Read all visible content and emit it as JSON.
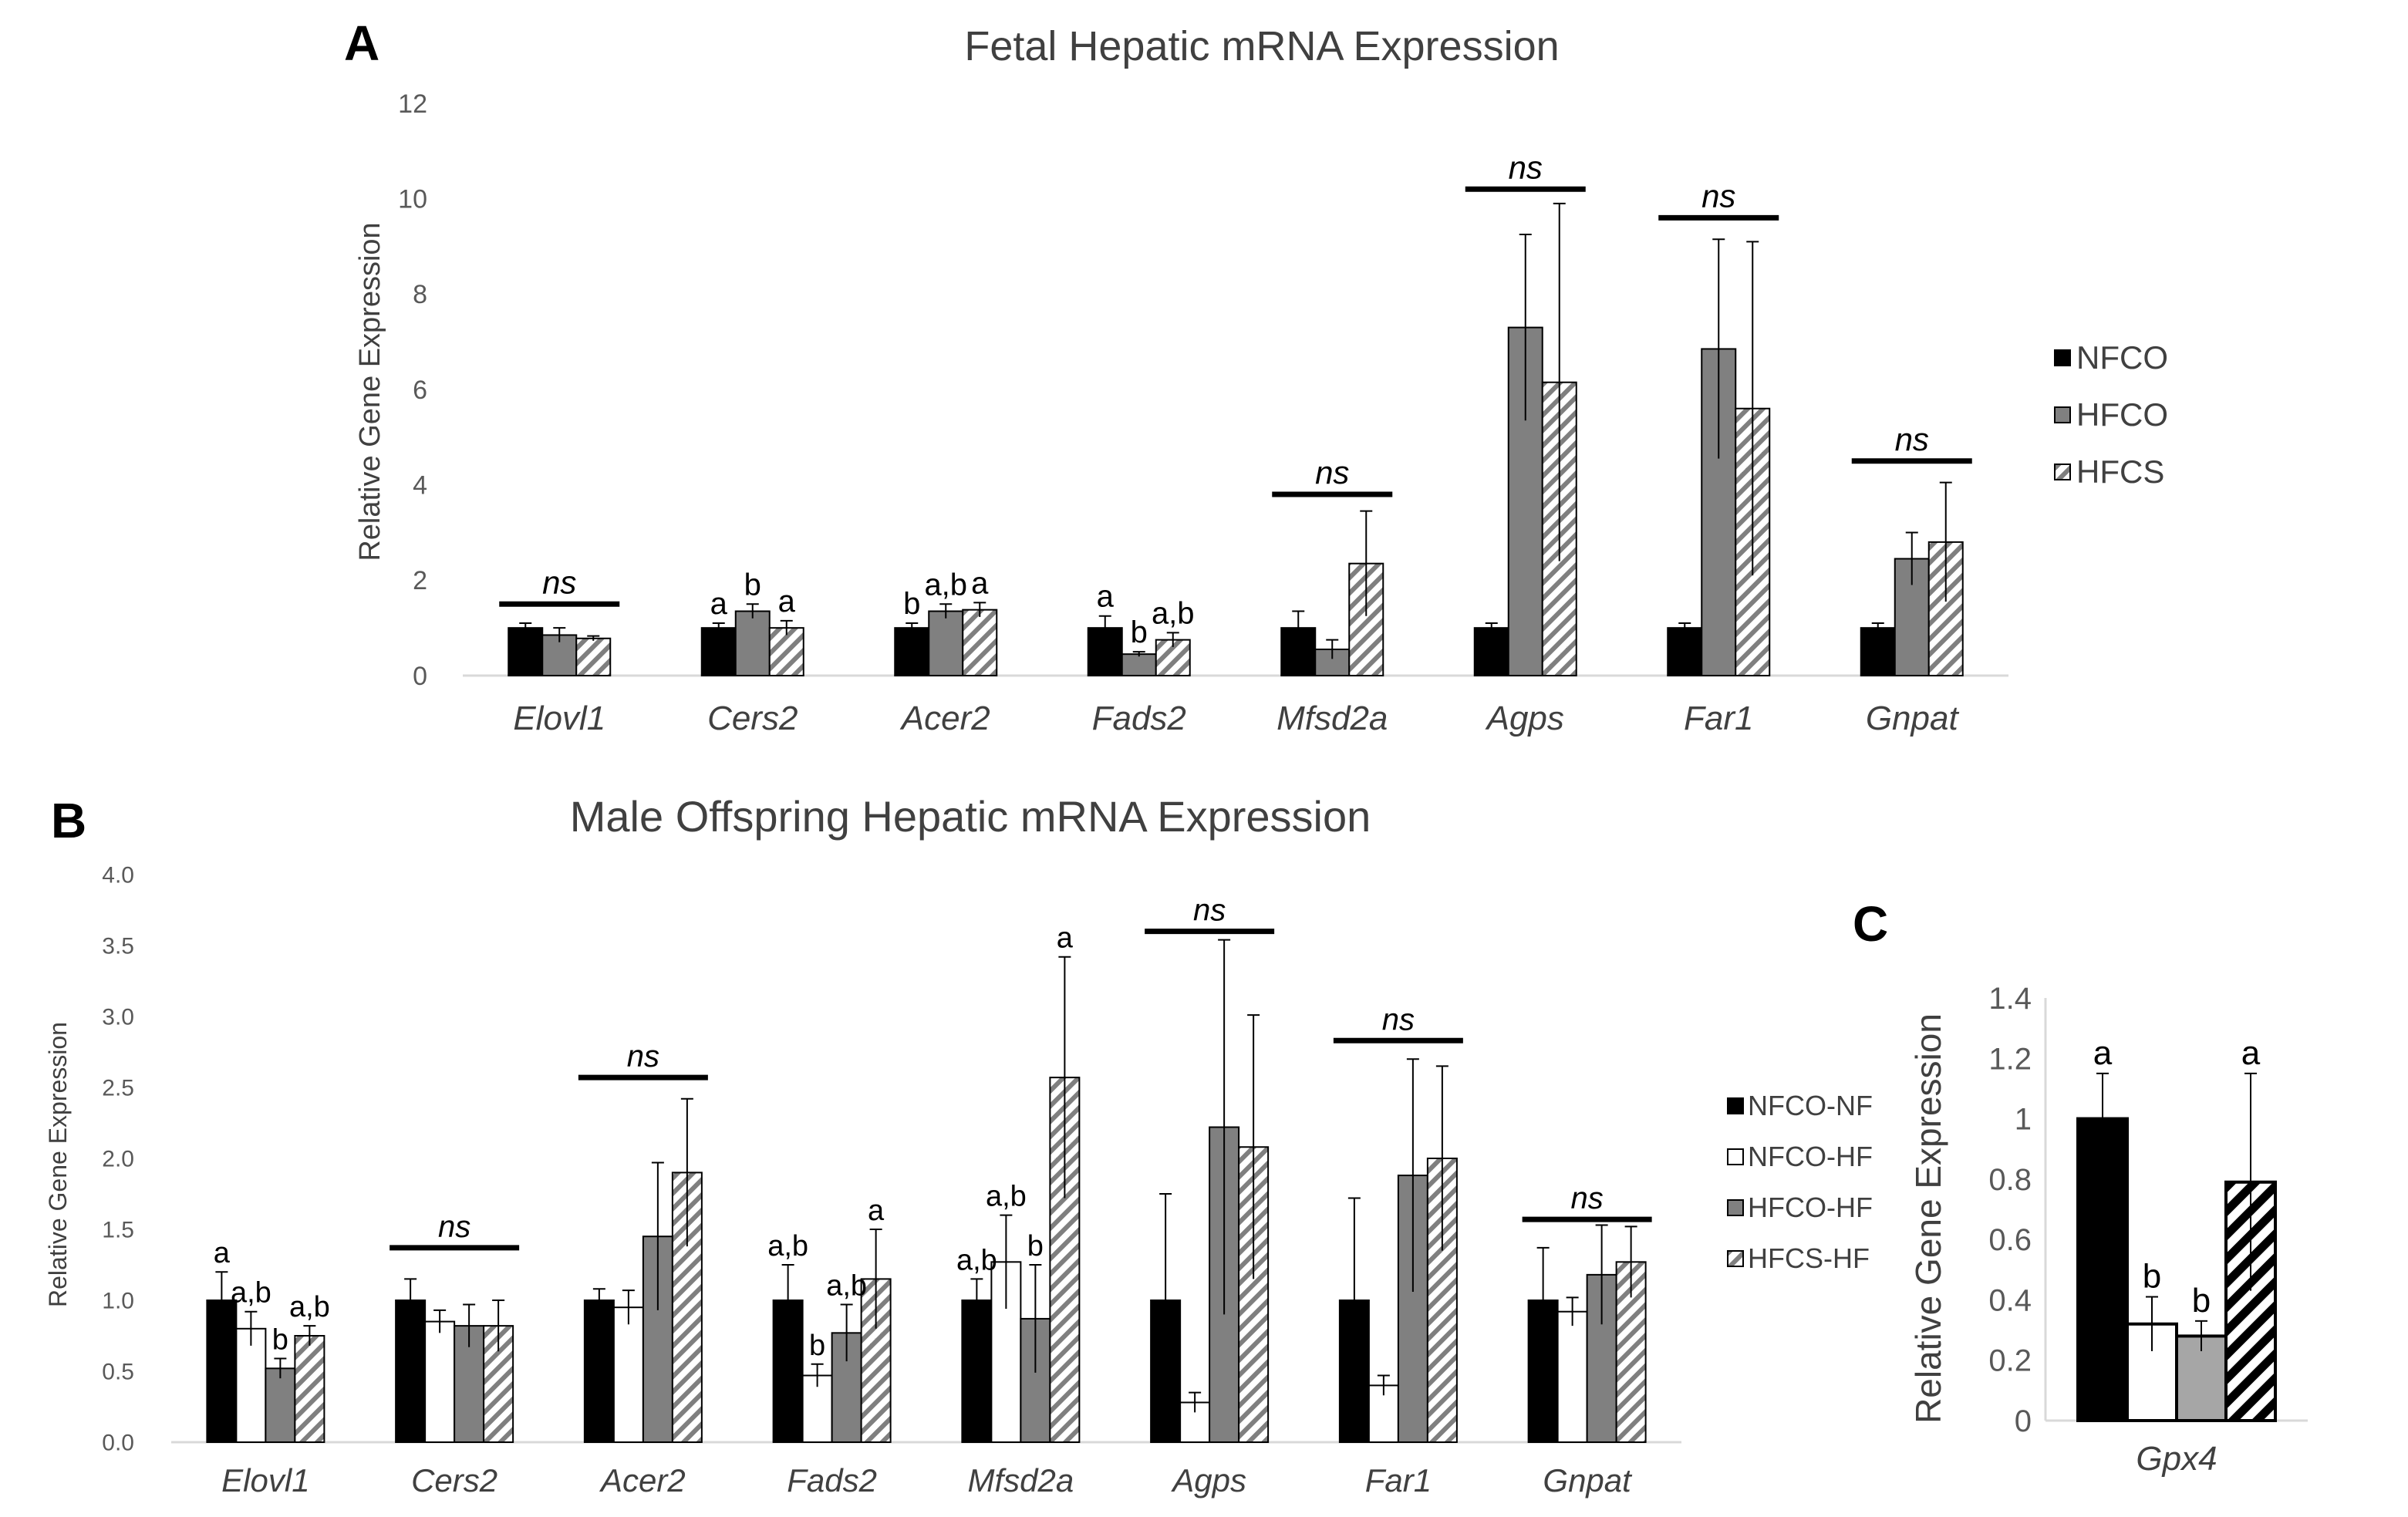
{
  "colors": {
    "black": "#000000",
    "gray": "#808080",
    "lightgray": "#a6a6a6",
    "white": "#ffffff",
    "axis": "#d9d9d9"
  },
  "chart_data": [
    {
      "panel": "A",
      "type": "bar",
      "title": "Fetal Hepatic mRNA Expression",
      "ylabel": "Relative Gene Expression",
      "ylim": [
        0,
        12
      ],
      "yticks": [
        "0",
        "2",
        "4",
        "6",
        "8",
        "10",
        "12"
      ],
      "categories": [
        "Elovl1",
        "Cers2",
        "Acer2",
        "Fads2",
        "Mfsd2a",
        "Agps",
        "Far1",
        "Gnpat"
      ],
      "legend_position": "right",
      "series": [
        {
          "name": "NFCO",
          "fill": "black",
          "values": [
            1.0,
            1.0,
            1.0,
            1.0,
            1.0,
            1.0,
            1.0,
            1.0
          ],
          "errors": [
            0.1,
            0.1,
            0.1,
            0.25,
            0.35,
            0.1,
            0.1,
            0.1
          ]
        },
        {
          "name": "HFCO",
          "fill": "gray",
          "values": [
            0.85,
            1.35,
            1.35,
            0.45,
            0.55,
            7.3,
            6.85,
            2.45
          ],
          "errors": [
            0.15,
            0.15,
            0.15,
            0.05,
            0.2,
            1.95,
            2.3,
            0.55
          ]
        },
        {
          "name": "HFCS",
          "fill": "hatch",
          "values": [
            0.78,
            1.0,
            1.38,
            0.75,
            2.35,
            6.15,
            5.6,
            2.8
          ],
          "errors": [
            0.05,
            0.15,
            0.15,
            0.15,
            1.1,
            3.75,
            3.5,
            1.25
          ]
        }
      ],
      "annotations": [
        {
          "cat": 0,
          "type": "ns",
          "text": "ns",
          "y": 1.5
        },
        {
          "cat": 1,
          "series": 0,
          "text": "a"
        },
        {
          "cat": 1,
          "series": 1,
          "text": "b"
        },
        {
          "cat": 1,
          "series": 2,
          "text": "a"
        },
        {
          "cat": 2,
          "series": 0,
          "text": "b"
        },
        {
          "cat": 2,
          "series": 1,
          "text": "a,b"
        },
        {
          "cat": 2,
          "series": 2,
          "text": "a"
        },
        {
          "cat": 3,
          "series": 0,
          "text": "a"
        },
        {
          "cat": 3,
          "series": 1,
          "text": "b"
        },
        {
          "cat": 3,
          "series": 2,
          "text": "a,b"
        },
        {
          "cat": 4,
          "type": "ns",
          "text": "ns",
          "y": 3.8
        },
        {
          "cat": 5,
          "type": "ns",
          "text": "ns",
          "y": 10.2
        },
        {
          "cat": 6,
          "type": "ns",
          "text": "ns",
          "y": 9.6
        },
        {
          "cat": 7,
          "type": "ns",
          "text": "ns",
          "y": 4.5
        }
      ]
    },
    {
      "panel": "B",
      "type": "bar",
      "title": "Male Offspring Hepatic mRNA Expression",
      "ylabel": "Relative Gene Expression",
      "ylim": [
        0,
        4
      ],
      "yticks": [
        "0.0",
        "0.5",
        "1.0",
        "1.5",
        "2.0",
        "2.5",
        "3.0",
        "3.5",
        "4.0"
      ],
      "categories": [
        "Elovl1",
        "Cers2",
        "Acer2",
        "Fads2",
        "Mfsd2a",
        "Agps",
        "Far1",
        "Gnpat"
      ],
      "legend_position": "right",
      "series": [
        {
          "name": "NFCO-NF",
          "fill": "black",
          "values": [
            1.0,
            1.0,
            1.0,
            1.0,
            1.0,
            1.0,
            1.0,
            1.0
          ],
          "errors": [
            0.2,
            0.15,
            0.08,
            0.25,
            0.15,
            0.75,
            0.72,
            0.37
          ]
        },
        {
          "name": "NFCO-HF",
          "fill": "white",
          "values": [
            0.8,
            0.85,
            0.95,
            0.47,
            1.27,
            0.28,
            0.4,
            0.92
          ],
          "errors": [
            0.12,
            0.08,
            0.12,
            0.08,
            0.33,
            0.07,
            0.07,
            0.1
          ]
        },
        {
          "name": "HFCO-HF",
          "fill": "gray",
          "values": [
            0.52,
            0.82,
            1.45,
            0.77,
            0.87,
            2.22,
            1.88,
            1.18
          ],
          "errors": [
            0.07,
            0.15,
            0.52,
            0.2,
            0.38,
            1.32,
            0.82,
            0.35
          ]
        },
        {
          "name": "HFCS-HF",
          "fill": "hatch",
          "values": [
            0.75,
            0.82,
            1.9,
            1.15,
            2.57,
            2.08,
            2.0,
            1.27
          ],
          "errors": [
            0.07,
            0.18,
            0.52,
            0.35,
            0.85,
            0.93,
            0.65,
            0.25
          ]
        }
      ],
      "annotations": [
        {
          "cat": 0,
          "series": 0,
          "text": "a"
        },
        {
          "cat": 0,
          "series": 1,
          "text": "a,b"
        },
        {
          "cat": 0,
          "series": 2,
          "text": "b"
        },
        {
          "cat": 0,
          "series": 3,
          "text": "a,b"
        },
        {
          "cat": 1,
          "type": "ns",
          "text": "ns",
          "y": 1.37
        },
        {
          "cat": 2,
          "type": "ns",
          "text": "ns",
          "y": 2.57
        },
        {
          "cat": 3,
          "series": 0,
          "text": "a,b"
        },
        {
          "cat": 3,
          "series": 1,
          "text": "b"
        },
        {
          "cat": 3,
          "series": 2,
          "text": "a,b"
        },
        {
          "cat": 3,
          "series": 3,
          "text": "a"
        },
        {
          "cat": 4,
          "series": 0,
          "text": "a,b"
        },
        {
          "cat": 4,
          "series": 1,
          "text": "a,b"
        },
        {
          "cat": 4,
          "series": 2,
          "text": "b"
        },
        {
          "cat": 4,
          "series": 3,
          "text": "a"
        },
        {
          "cat": 5,
          "type": "ns",
          "text": "ns",
          "y": 3.6
        },
        {
          "cat": 6,
          "type": "ns",
          "text": "ns",
          "y": 2.83
        },
        {
          "cat": 7,
          "type": "ns",
          "text": "ns",
          "y": 1.57
        }
      ]
    },
    {
      "panel": "C",
      "type": "bar",
      "title": "",
      "ylabel": "Relative  Gene Expression",
      "ylim": [
        0,
        1.4
      ],
      "yticks": [
        "0",
        "0.2",
        "0.4",
        "0.6",
        "0.8",
        "1",
        "1.2",
        "1.4"
      ],
      "categories": [
        "Gpx4"
      ],
      "series": [
        {
          "name": "NFCO-NF",
          "fill": "black",
          "values": [
            1.0
          ],
          "errors": [
            0.15
          ]
        },
        {
          "name": "NFCO-HF",
          "fill": "white",
          "values": [
            0.32
          ],
          "errors": [
            0.09
          ]
        },
        {
          "name": "HFCO-HF",
          "fill": "lightgray",
          "values": [
            0.28
          ],
          "errors": [
            0.05
          ]
        },
        {
          "name": "HFCS-HF",
          "fill": "hatch",
          "values": [
            0.79
          ],
          "errors": [
            0.36
          ]
        }
      ],
      "annotations": [
        {
          "cat": 0,
          "series": 0,
          "text": "a"
        },
        {
          "cat": 0,
          "series": 1,
          "text": "b"
        },
        {
          "cat": 0,
          "series": 2,
          "text": "b"
        },
        {
          "cat": 0,
          "series": 3,
          "text": "a"
        }
      ]
    }
  ]
}
